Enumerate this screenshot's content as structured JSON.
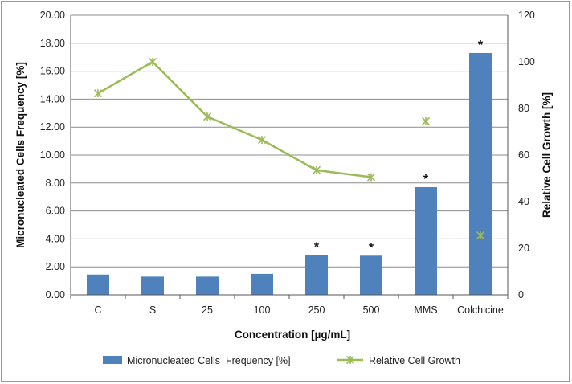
{
  "chart_data": {
    "type": "bar",
    "categories": [
      "C",
      "S",
      "25",
      "100",
      "250",
      "500",
      "MMS",
      "Colchicine"
    ],
    "xlabel": "Concentration [µg/mL]",
    "ylabel": "Micronucleated Cells Frequency [%]",
    "y2label": "Relative Cell Growth [%]",
    "ylim": [
      0,
      20
    ],
    "y2lim": [
      0,
      120
    ],
    "y_ticks": [
      "0.00",
      "2.00",
      "4.00",
      "6.00",
      "8.00",
      "10.00",
      "12.00",
      "14.00",
      "16.00",
      "18.00",
      "20.00"
    ],
    "y2_ticks": [
      "0",
      "20",
      "40",
      "60",
      "80",
      "100",
      "120"
    ],
    "grid": true,
    "legend_position": "bottom",
    "series": [
      {
        "name": "Micronucleated Cells  Frequency [%]",
        "kind": "bar",
        "axis": "left",
        "color": "#4f81bd",
        "values": [
          1.45,
          1.3,
          1.3,
          1.5,
          2.85,
          2.8,
          7.7,
          17.3
        ]
      },
      {
        "name": "Relative Cell Growth",
        "kind": "line",
        "axis": "right",
        "color": "#9bbb59",
        "marker": "asterisk",
        "values": [
          86.5,
          100,
          76.5,
          66.5,
          53.5,
          50.5,
          null,
          null
        ],
        "standalone_points": [
          {
            "index": 6,
            "value": 74.5
          },
          {
            "index": 7,
            "value": 25.5
          }
        ]
      }
    ],
    "annotations": [
      {
        "index": 4,
        "text": "*"
      },
      {
        "index": 5,
        "text": "*"
      },
      {
        "index": 6,
        "text": "*"
      },
      {
        "index": 7,
        "text": "*"
      }
    ]
  }
}
